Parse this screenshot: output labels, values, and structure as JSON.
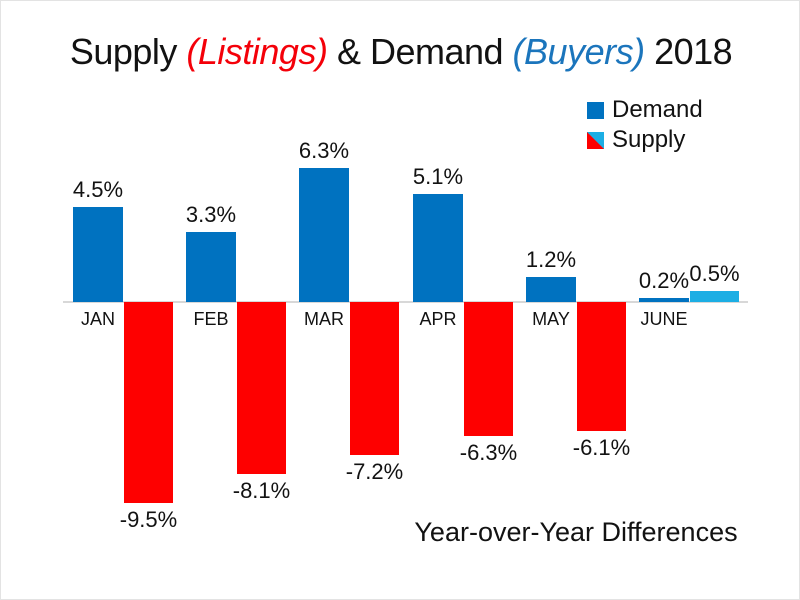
{
  "title": {
    "part_supply": "Supply ",
    "part_listings": "(Listings)",
    "part_demand": " & Demand ",
    "part_buyers": "(Buyers)",
    "part_year": " 2018"
  },
  "legend": {
    "demand_label": "Demand",
    "supply_label": "Supply"
  },
  "caption": "Year-over-Year Differences",
  "colors": {
    "demand_blue": "#0072C0",
    "supply_red": "#FE0000",
    "supply_positive_blue": "#1CAEE4",
    "title_red": "#F40009",
    "title_blue": "#1B75BC",
    "baseline_gray": "#D8D8D8",
    "text_black": "#121212"
  },
  "chart_data": {
    "type": "bar",
    "title": "Supply (Listings) & Demand (Buyers) 2018",
    "subtitle": "Year-over-Year Differences",
    "categories": [
      "JAN",
      "FEB",
      "MAR",
      "APR",
      "MAY",
      "JUNE"
    ],
    "series": [
      {
        "name": "Demand",
        "values": [
          4.5,
          3.3,
          6.3,
          5.1,
          1.2,
          0.2
        ],
        "labels": [
          "4.5%",
          "3.3%",
          "6.3%",
          "5.1%",
          "1.2%",
          "0.2%"
        ],
        "color": "#0072C0"
      },
      {
        "name": "Supply",
        "values": [
          -9.5,
          -8.1,
          -7.2,
          -6.3,
          -6.1,
          0.5
        ],
        "labels": [
          "-9.5%",
          "-8.1%",
          "-7.2%",
          "-6.3%",
          "-6.1%",
          "0.5%"
        ],
        "color_negative": "#FE0000",
        "color_positive": "#1CAEE4"
      }
    ],
    "xlabel": "",
    "ylabel": "",
    "ylim": [
      -10,
      7
    ],
    "unit": "%",
    "gridlines": false,
    "zero_line": true,
    "legend_position": "top-right",
    "value_labels_shown": true
  }
}
